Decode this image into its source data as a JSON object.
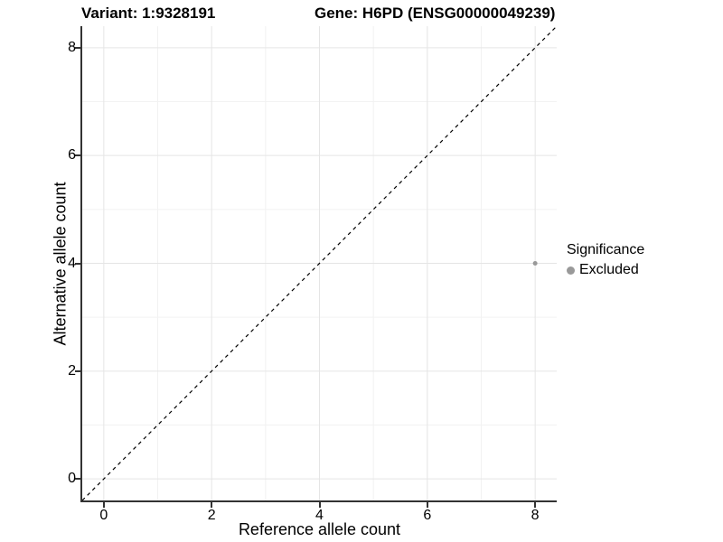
{
  "chart_data": {
    "type": "scatter",
    "titles": {
      "variant": "Variant: 1:9328191",
      "gene": "Gene: H6PD (ENSG00000049239)"
    },
    "xlabel": "Reference allele count",
    "ylabel": "Alternative allele count",
    "xlim": [
      -0.4,
      8.4
    ],
    "ylim": [
      -0.4,
      8.4
    ],
    "x_ticks": [
      0,
      2,
      4,
      6,
      8
    ],
    "y_ticks": [
      0,
      2,
      4,
      6,
      8
    ],
    "x_minor_ticks": [
      1,
      3,
      5,
      7
    ],
    "y_minor_ticks": [
      1,
      3,
      5,
      7
    ],
    "grid": true,
    "points": [
      {
        "x": 8,
        "y": 4,
        "series": "Excluded"
      }
    ],
    "abline": {
      "slope": 1,
      "intercept": 0,
      "linetype": "dashed",
      "color": "#000000"
    },
    "legend": {
      "title": "Significance",
      "position": "right",
      "items": [
        {
          "label": "Excluded",
          "color": "#999999"
        }
      ]
    },
    "colors": {
      "point_excluded": "#999999",
      "grid_major": "#e5e5e5",
      "grid_minor": "#f2f2f2",
      "axis_line": "#333333",
      "text": "#000000"
    }
  }
}
